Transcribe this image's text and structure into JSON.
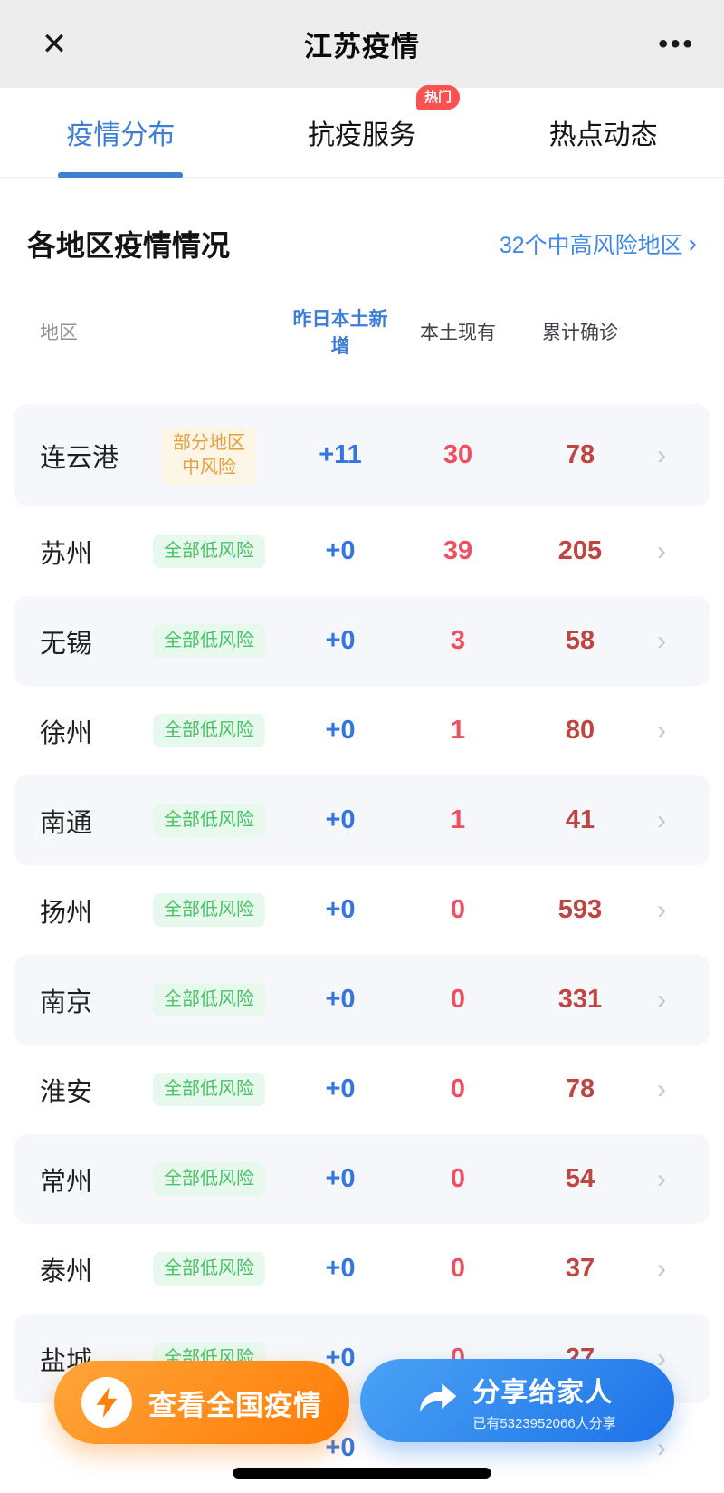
{
  "nav": {
    "title": "江苏疫情"
  },
  "icons": {
    "close": "✕",
    "more": "•••",
    "chevron": "›",
    "link_arrow": "›"
  },
  "tabs": [
    {
      "label": "疫情分布",
      "active": true
    },
    {
      "label": "抗疫服务",
      "active": false,
      "badge": "热门"
    },
    {
      "label": "热点动态",
      "active": false
    }
  ],
  "section": {
    "title": "各地区疫情情况",
    "link": "32个中高风险地区"
  },
  "table": {
    "headers": {
      "region": "地区",
      "new": "昨日本土新增",
      "active": "本土现有",
      "total": "累计确诊"
    },
    "rows": [
      {
        "name": "连云港",
        "risk_lines": [
          "部分地区",
          "中风险"
        ],
        "risk_type": "mid",
        "new": "+11",
        "active": "30",
        "total": "78",
        "bg": "gray",
        "first": true
      },
      {
        "name": "苏州",
        "risk_lines": [
          "全部低风险"
        ],
        "risk_type": "low",
        "new": "+0",
        "active": "39",
        "total": "205",
        "bg": "white"
      },
      {
        "name": "无锡",
        "risk_lines": [
          "全部低风险"
        ],
        "risk_type": "low",
        "new": "+0",
        "active": "3",
        "total": "58",
        "bg": "gray"
      },
      {
        "name": "徐州",
        "risk_lines": [
          "全部低风险"
        ],
        "risk_type": "low",
        "new": "+0",
        "active": "1",
        "total": "80",
        "bg": "white"
      },
      {
        "name": "南通",
        "risk_lines": [
          "全部低风险"
        ],
        "risk_type": "low",
        "new": "+0",
        "active": "1",
        "total": "41",
        "bg": "gray"
      },
      {
        "name": "扬州",
        "risk_lines": [
          "全部低风险"
        ],
        "risk_type": "low",
        "new": "+0",
        "active": "0",
        "total": "593",
        "bg": "white"
      },
      {
        "name": "南京",
        "risk_lines": [
          "全部低风险"
        ],
        "risk_type": "low",
        "new": "+0",
        "active": "0",
        "total": "331",
        "bg": "gray"
      },
      {
        "name": "淮安",
        "risk_lines": [
          "全部低风险"
        ],
        "risk_type": "low",
        "new": "+0",
        "active": "0",
        "total": "78",
        "bg": "white"
      },
      {
        "name": "常州",
        "risk_lines": [
          "全部低风险"
        ],
        "risk_type": "low",
        "new": "+0",
        "active": "0",
        "total": "54",
        "bg": "gray"
      },
      {
        "name": "泰州",
        "risk_lines": [
          "全部低风险"
        ],
        "risk_type": "low",
        "new": "+0",
        "active": "0",
        "total": "37",
        "bg": "white"
      },
      {
        "name": "盐城",
        "risk_lines": [
          "全部低风险"
        ],
        "risk_type": "low",
        "new": "+0",
        "active": "0",
        "total": "27",
        "bg": "gray"
      },
      {
        "name": "",
        "risk_lines": [],
        "risk_type": "none",
        "new": "+0",
        "active": "",
        "total": "",
        "bg": "white"
      }
    ]
  },
  "buttons": {
    "national": {
      "label": "查看全国疫情"
    },
    "share": {
      "label": "分享给家人",
      "sub": "已有5323952066人分享"
    }
  },
  "colors": {
    "accent_blue": "#3e7fd4",
    "new_blue": "#3476e0",
    "active_red": "#f04f5f",
    "total_red": "#bf4540",
    "risk_low_green": "#49c366",
    "risk_mid_orange": "#e5a03c",
    "hot_badge_red": "#fa5151",
    "fab_orange": "#ff7b05",
    "fab_blue": "#1d72e8"
  }
}
